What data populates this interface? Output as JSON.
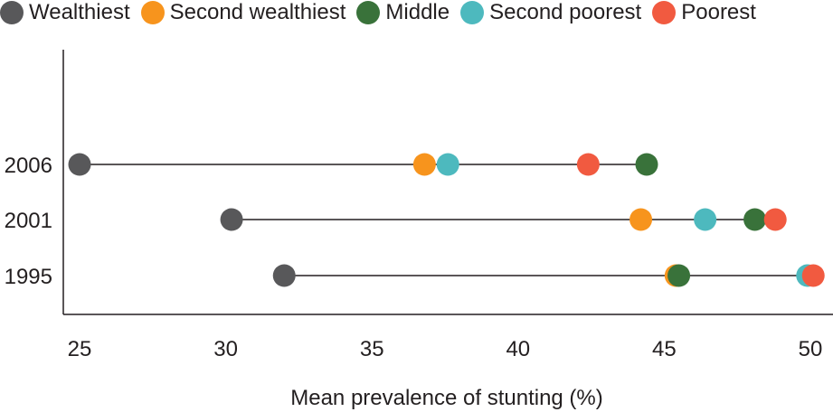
{
  "chart_data": {
    "type": "scatter",
    "title": "",
    "xlabel": "Mean prevalence of stunting (%)",
    "ylabel": "",
    "xlim": [
      24.5,
      50.5
    ],
    "xticks": [
      25,
      30,
      35,
      40,
      45,
      50
    ],
    "categories": [
      "2006",
      "2001",
      "1995"
    ],
    "series": [
      {
        "name": "Wealthiest",
        "color": "#58585a",
        "values": [
          25.0,
          30.2,
          32.0
        ]
      },
      {
        "name": "Second wealthiest",
        "color": "#f7941d",
        "values": [
          36.8,
          44.2,
          45.4
        ]
      },
      {
        "name": "Middle",
        "color": "#39723a",
        "values": [
          44.4,
          48.1,
          45.5
        ]
      },
      {
        "name": "Second poorest",
        "color": "#4db9be",
        "values": [
          37.6,
          46.4,
          49.9
        ]
      },
      {
        "name": "Poorest",
        "color": "#f15a40",
        "values": [
          42.4,
          48.8,
          50.1
        ]
      }
    ],
    "grid": false,
    "legend_position": "top"
  }
}
